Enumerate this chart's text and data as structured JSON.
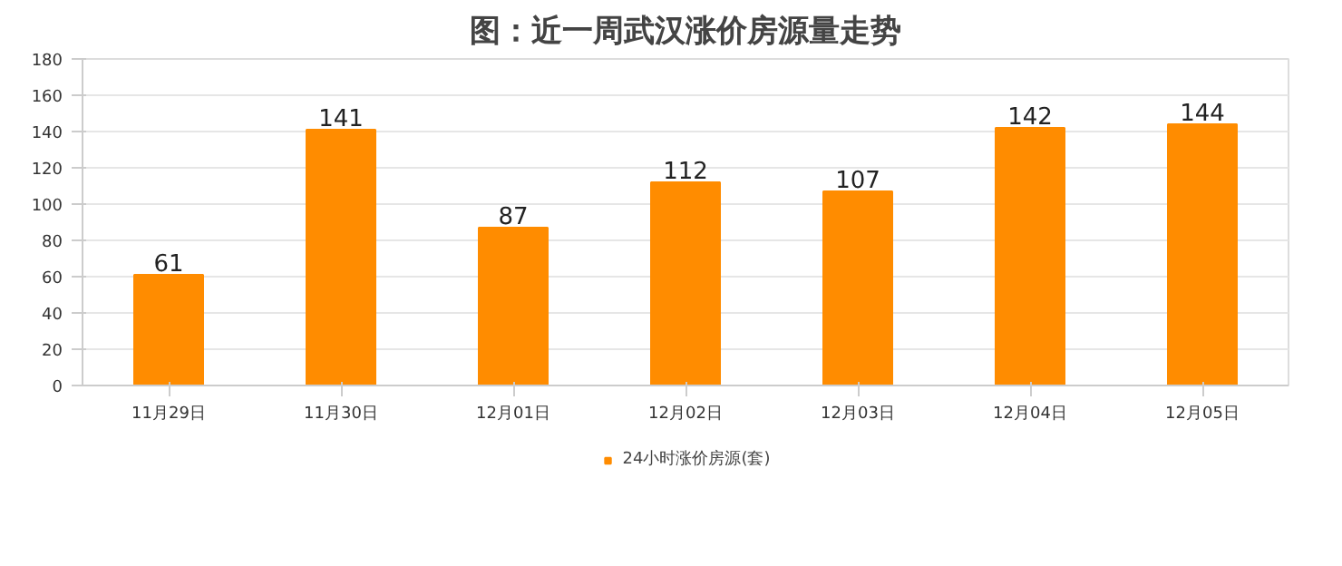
{
  "chart_data": {
    "type": "bar",
    "title": "图：近一周武汉涨价房源量走势",
    "categories": [
      "11月29日",
      "11月30日",
      "12月01日",
      "12月02日",
      "12月03日",
      "12月04日",
      "12月05日"
    ],
    "series": [
      {
        "name": "24小时涨价房源(套)",
        "color": "#ff8c00",
        "values": [
          61,
          141,
          87,
          112,
          107,
          142,
          144
        ]
      }
    ],
    "ylim": [
      0,
      180
    ],
    "yticks": [
      0,
      20,
      40,
      60,
      80,
      100,
      120,
      140,
      160,
      180
    ],
    "grid": "y",
    "legend": "bottom",
    "data_labels": true
  }
}
